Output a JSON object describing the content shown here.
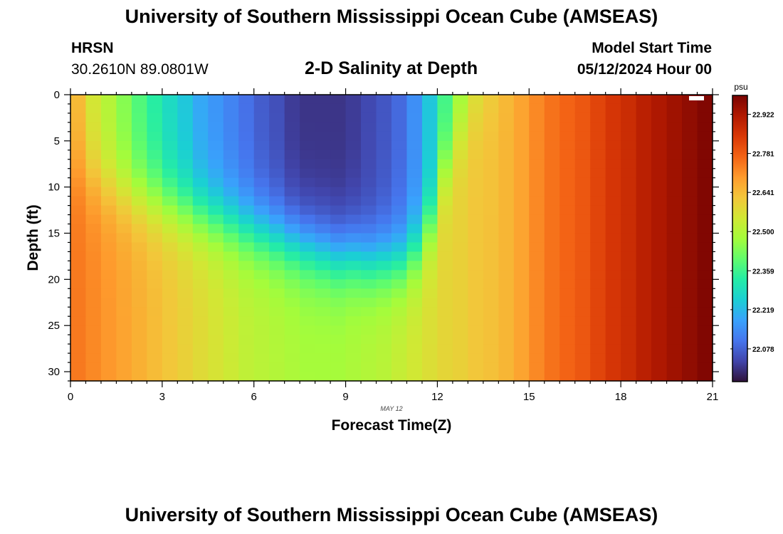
{
  "header": {
    "title": "University of Southern Mississippi Ocean Cube (AMSEAS)",
    "station_id": "HRSN",
    "coordinates": "30.2610N  89.0801W",
    "model_start_label": "Model Start Time",
    "model_start_value": "05/12/2024 Hour 00"
  },
  "footer": {
    "title": "University of Southern Mississippi Ocean Cube (AMSEAS)"
  },
  "chart_data": {
    "type": "heatmap",
    "title": "2-D Salinity at Depth",
    "xlabel": "Forecast Time(Z)",
    "ylabel": "Depth (ft)",
    "date_label": "MAY 12",
    "x_range": [
      0,
      21
    ],
    "y_range": [
      0,
      31
    ],
    "x_ticks": [
      0,
      3,
      6,
      9,
      12,
      15,
      18,
      21
    ],
    "y_ticks": [
      0,
      5,
      10,
      15,
      20,
      25,
      30
    ],
    "x_columns": 42,
    "y_rows": 31,
    "colorbar": {
      "unit": "psu",
      "min": 21.96,
      "max": 22.99,
      "ticks": [
        "22.922",
        "22.781",
        "22.641",
        "22.500",
        "22.359",
        "22.219",
        "22.078"
      ]
    },
    "color_scale": [
      "#30123b",
      "#4145ab",
      "#4675ed",
      "#39a2fc",
      "#1bcfd4",
      "#24eca6",
      "#61fc6c",
      "#a4fc3b",
      "#d1e834",
      "#f3c63a",
      "#fe9b2d",
      "#f36315",
      "#d93806",
      "#b11901",
      "#7a0402"
    ],
    "profile_model": {
      "surface_curve": [
        22.64,
        22.55,
        22.5,
        22.44,
        22.38,
        22.33,
        22.28,
        22.24,
        22.19,
        22.16,
        22.13,
        22.1,
        22.07,
        22.05,
        22.02,
        22.01,
        22.01,
        22.01,
        22.02,
        22.04,
        22.06,
        22.09,
        22.15,
        22.24,
        22.36,
        22.46,
        22.55,
        22.6,
        22.64,
        22.68,
        22.72,
        22.75,
        22.77,
        22.79,
        22.82,
        22.85,
        22.87,
        22.9,
        22.92,
        22.94,
        22.96,
        22.98
      ],
      "bottom_curve": [
        22.74,
        22.72,
        22.7,
        22.68,
        22.66,
        22.64,
        22.62,
        22.6,
        22.58,
        22.56,
        22.54,
        22.52,
        22.51,
        22.5,
        22.49,
        22.48,
        22.48,
        22.48,
        22.49,
        22.5,
        22.51,
        22.53,
        22.55,
        22.57,
        22.59,
        22.6,
        22.62,
        22.63,
        22.65,
        22.68,
        22.72,
        22.75,
        22.77,
        22.79,
        22.82,
        22.85,
        22.87,
        22.9,
        22.92,
        22.94,
        22.96,
        22.98
      ],
      "interface_depth": [
        8,
        9,
        10,
        10.5,
        11,
        11.5,
        12,
        12.5,
        13,
        13.5,
        14,
        14.5,
        15,
        15.5,
        16,
        16.5,
        17,
        17.5,
        17.5,
        18,
        18,
        18,
        17,
        14,
        8,
        4,
        2,
        1,
        0,
        0,
        0,
        0,
        0,
        0,
        0,
        0,
        0,
        0,
        0,
        0,
        0,
        0
      ],
      "transition_width_ft": 2.2
    }
  }
}
